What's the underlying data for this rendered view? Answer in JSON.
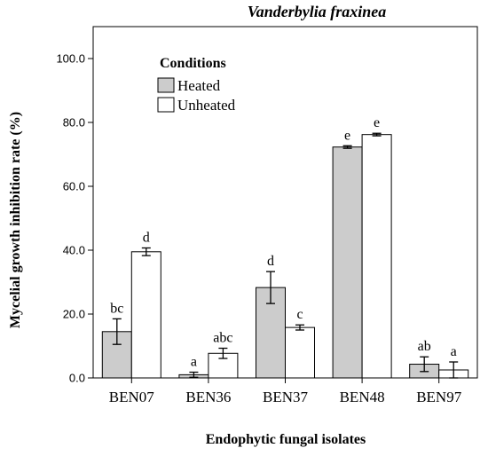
{
  "chart_data": {
    "type": "bar",
    "title": "Vanderbylia fraxinea",
    "xlabel": "Endophytic fungal isolates",
    "ylabel": "Mycelial growth inhibition rate (%)",
    "ylim": [
      0,
      110
    ],
    "yticks": [
      0,
      20,
      40,
      60,
      80,
      100
    ],
    "ytick_labels": [
      "0.0",
      "20.0",
      "40.0",
      "60.0",
      "80.0",
      "100.0"
    ],
    "categories": [
      "BEN07",
      "BEN36",
      "BEN37",
      "BEN48",
      "BEN97"
    ],
    "legend_title": "Conditions",
    "legend_position": "top-left",
    "grid": false,
    "series": [
      {
        "name": "Heated",
        "color": "#cccccc",
        "values": [
          14.5,
          1.0,
          28.3,
          72.3,
          4.3
        ],
        "error": [
          4.0,
          0.8,
          5.0,
          0.4,
          2.3
        ],
        "letters": [
          "bc",
          "a",
          "d",
          "e",
          "ab"
        ]
      },
      {
        "name": "Unheated",
        "color": "#ffffff",
        "values": [
          39.5,
          7.7,
          15.8,
          76.2,
          2.5
        ],
        "error": [
          1.2,
          1.6,
          0.8,
          0.4,
          2.5
        ],
        "letters": [
          "d",
          "abc",
          "c",
          "e",
          "a"
        ]
      }
    ]
  }
}
